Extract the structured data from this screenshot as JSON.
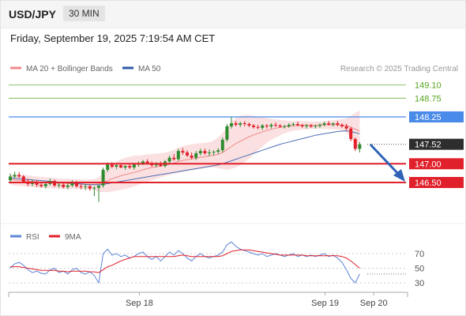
{
  "header": {
    "pair": "USD/JPY",
    "timeframe": "30 MIN"
  },
  "datetime": "Friday, September 19, 2025 7:19:54 AM CET",
  "credit": "Research © 2025 Trading Central",
  "colors": {
    "candle_up": "#2e8b2e",
    "candle_down": "#e0202a",
    "bollinger": "#f7c6c8",
    "ma20": "#f08a8a",
    "ma50": "#4a6fb5",
    "resistance": "#4a8ae8",
    "support": "#e0202a",
    "level_green": "#55a51c",
    "current": "#2d2d2d",
    "rsi": "#5c86d6",
    "ma9": "#e0202a",
    "arrow": "#2f63b6"
  },
  "chart_data": [
    {
      "type": "candlestick",
      "title": "USD/JPY",
      "legend": [
        {
          "name": "MA 20 + Bollinger Bands",
          "color": "#f08a8a"
        },
        {
          "name": "MA 50",
          "color": "#2d5aa8"
        }
      ],
      "legend_position": "top-left",
      "ylim": [
        145.9,
        149.4
      ],
      "levels": [
        {
          "value": 149.1,
          "label": "149.10",
          "kind": "resistance",
          "color": "#55a51c"
        },
        {
          "value": 148.75,
          "label": "148.75",
          "kind": "resistance",
          "color": "#55a51c"
        },
        {
          "value": 148.25,
          "label": "148.25",
          "kind": "resistance",
          "color": "#4a8ae8"
        },
        {
          "value": 147.52,
          "label": "147.52",
          "kind": "current",
          "color": "#2d2d2d"
        },
        {
          "value": 147.0,
          "label": "147.00",
          "kind": "support",
          "color": "#e0202a"
        },
        {
          "value": 146.5,
          "label": "146.50",
          "kind": "support",
          "color": "#e0202a"
        }
      ],
      "x_ticks": [
        {
          "index": 29,
          "label": "Sep 18"
        },
        {
          "index": 71,
          "label": "Sep 19"
        },
        {
          "index": 82,
          "label": "Sep 20"
        }
      ],
      "candles": [
        [
          146.56,
          146.74,
          146.52,
          146.66
        ],
        [
          146.66,
          146.79,
          146.6,
          146.7
        ],
        [
          146.7,
          146.78,
          146.62,
          146.66
        ],
        [
          146.66,
          146.7,
          146.48,
          146.52
        ],
        [
          146.52,
          146.6,
          146.4,
          146.46
        ],
        [
          146.46,
          146.58,
          146.4,
          146.5
        ],
        [
          146.5,
          146.56,
          146.38,
          146.44
        ],
        [
          146.44,
          146.52,
          146.36,
          146.4
        ],
        [
          146.4,
          146.5,
          146.34,
          146.46
        ],
        [
          146.46,
          146.6,
          146.42,
          146.54
        ],
        [
          146.54,
          146.58,
          146.38,
          146.42
        ],
        [
          146.42,
          146.5,
          146.36,
          146.44
        ],
        [
          146.44,
          146.52,
          146.34,
          146.38
        ],
        [
          146.38,
          146.48,
          146.32,
          146.42
        ],
        [
          146.42,
          146.56,
          146.38,
          146.5
        ],
        [
          146.5,
          146.54,
          146.36,
          146.4
        ],
        [
          146.4,
          146.46,
          146.32,
          146.38
        ],
        [
          146.38,
          146.46,
          146.3,
          146.4
        ],
        [
          146.4,
          146.44,
          146.28,
          146.34
        ],
        [
          146.34,
          146.4,
          146.14,
          146.36
        ],
        [
          146.36,
          146.4,
          145.98,
          146.42
        ],
        [
          146.42,
          146.9,
          146.36,
          146.84
        ],
        [
          146.84,
          147.04,
          146.78,
          146.98
        ],
        [
          146.98,
          147.04,
          146.88,
          146.92
        ],
        [
          146.92,
          147.0,
          146.86,
          146.96
        ],
        [
          146.96,
          147.0,
          146.88,
          146.9
        ],
        [
          146.9,
          146.96,
          146.84,
          146.94
        ],
        [
          146.94,
          146.98,
          146.86,
          146.9
        ],
        [
          146.9,
          147.02,
          146.84,
          146.98
        ],
        [
          146.98,
          147.06,
          146.92,
          147.0
        ],
        [
          147.0,
          147.1,
          146.96,
          147.06
        ],
        [
          147.06,
          147.12,
          146.98,
          147.02
        ],
        [
          147.02,
          147.06,
          146.92,
          146.96
        ],
        [
          146.96,
          147.04,
          146.9,
          147.0
        ],
        [
          147.0,
          147.06,
          146.92,
          146.94
        ],
        [
          146.94,
          147.1,
          146.9,
          147.06
        ],
        [
          147.06,
          147.22,
          147.0,
          147.16
        ],
        [
          147.16,
          147.26,
          147.08,
          147.12
        ],
        [
          147.12,
          147.4,
          147.08,
          147.34
        ],
        [
          147.34,
          147.42,
          147.24,
          147.3
        ],
        [
          147.3,
          147.36,
          147.18,
          147.22
        ],
        [
          147.22,
          147.3,
          147.12,
          147.16
        ],
        [
          147.16,
          147.34,
          147.1,
          147.28
        ],
        [
          147.28,
          147.4,
          147.22,
          147.34
        ],
        [
          147.34,
          147.4,
          147.24,
          147.28
        ],
        [
          147.28,
          147.38,
          147.2,
          147.3
        ],
        [
          147.3,
          147.36,
          147.22,
          147.32
        ],
        [
          147.32,
          147.42,
          147.26,
          147.36
        ],
        [
          147.36,
          147.7,
          147.3,
          147.64
        ],
        [
          147.64,
          148.06,
          147.58,
          148.0
        ],
        [
          148.0,
          148.26,
          147.94,
          148.08
        ],
        [
          148.08,
          148.14,
          148.0,
          148.04
        ],
        [
          148.04,
          148.12,
          147.98,
          148.08
        ],
        [
          148.08,
          148.14,
          148.0,
          148.06
        ],
        [
          148.06,
          148.1,
          147.98,
          148.02
        ],
        [
          148.02,
          148.06,
          147.94,
          147.98
        ],
        [
          147.98,
          148.04,
          147.92,
          147.96
        ],
        [
          147.96,
          148.06,
          147.9,
          148.02
        ],
        [
          148.02,
          148.06,
          147.94,
          148.0
        ],
        [
          148.0,
          148.08,
          147.94,
          148.04
        ],
        [
          148.04,
          148.1,
          147.98,
          148.02
        ],
        [
          148.02,
          148.06,
          147.96,
          147.99
        ],
        [
          147.99,
          148.04,
          147.94,
          148.0
        ],
        [
          148.0,
          148.08,
          147.96,
          148.04
        ],
        [
          148.04,
          148.1,
          148.0,
          148.06
        ],
        [
          148.06,
          148.12,
          148.0,
          148.03
        ],
        [
          148.03,
          148.06,
          147.96,
          148.0
        ],
        [
          148.0,
          148.06,
          147.94,
          148.02
        ],
        [
          148.02,
          148.06,
          147.96,
          147.99
        ],
        [
          147.99,
          148.04,
          147.94,
          148.01
        ],
        [
          148.01,
          148.08,
          147.96,
          148.04
        ],
        [
          148.04,
          148.12,
          148.0,
          148.08
        ],
        [
          148.08,
          148.14,
          148.02,
          148.05
        ],
        [
          148.05,
          148.1,
          148.0,
          148.08
        ],
        [
          148.08,
          148.14,
          148.0,
          148.04
        ],
        [
          148.04,
          148.08,
          147.96,
          148.0
        ],
        [
          148.0,
          148.06,
          147.9,
          147.94
        ],
        [
          147.94,
          147.98,
          147.6,
          147.66
        ],
        [
          147.66,
          147.7,
          147.34,
          147.4
        ],
        [
          147.4,
          147.58,
          147.3,
          147.52
        ]
      ],
      "ma20": [
        146.58,
        146.57,
        146.56,
        146.55,
        146.54,
        146.53,
        146.52,
        146.51,
        146.5,
        146.5,
        146.49,
        146.48,
        146.48,
        146.47,
        146.47,
        146.46,
        146.46,
        146.45,
        146.45,
        146.45,
        146.46,
        146.5,
        146.55,
        146.6,
        146.64,
        146.68,
        146.71,
        146.74,
        146.77,
        146.8,
        146.84,
        146.87,
        146.9,
        146.92,
        146.94,
        146.96,
        146.99,
        147.02,
        147.06,
        147.09,
        147.11,
        147.13,
        147.15,
        147.17,
        147.19,
        147.21,
        147.23,
        147.25,
        147.3,
        147.38,
        147.46,
        147.54,
        147.6,
        147.66,
        147.72,
        147.77,
        147.81,
        147.85,
        147.89,
        147.92,
        147.95,
        147.97,
        147.99,
        148.0,
        148.01,
        148.02,
        148.03,
        148.03,
        148.03,
        148.03,
        148.03,
        148.04,
        148.04,
        148.04,
        148.04,
        148.03,
        148.02,
        147.98,
        147.92,
        147.87
      ],
      "bb_upper": [
        146.72,
        146.72,
        146.71,
        146.7,
        146.69,
        146.68,
        146.66,
        146.65,
        146.64,
        146.63,
        146.62,
        146.61,
        146.6,
        146.6,
        146.59,
        146.59,
        146.58,
        146.58,
        146.58,
        146.59,
        146.64,
        146.76,
        146.88,
        146.98,
        147.06,
        147.12,
        147.16,
        147.19,
        147.21,
        147.22,
        147.23,
        147.25,
        147.26,
        147.27,
        147.28,
        147.3,
        147.33,
        147.37,
        147.43,
        147.47,
        147.5,
        147.52,
        147.54,
        147.55,
        147.56,
        147.58,
        147.62,
        147.7,
        147.82,
        147.98,
        148.12,
        148.22,
        148.28,
        148.3,
        148.3,
        148.28,
        148.26,
        148.24,
        148.22,
        148.2,
        148.18,
        148.17,
        148.16,
        148.15,
        148.14,
        148.14,
        148.14,
        148.14,
        148.13,
        148.13,
        148.13,
        148.14,
        148.15,
        148.16,
        148.17,
        148.19,
        148.21,
        148.28,
        148.36,
        148.42
      ],
      "bb_lower": [
        146.44,
        146.42,
        146.41,
        146.4,
        146.39,
        146.38,
        146.37,
        146.36,
        146.35,
        146.35,
        146.34,
        146.34,
        146.33,
        146.33,
        146.33,
        146.32,
        146.32,
        146.32,
        146.31,
        146.29,
        146.26,
        146.24,
        146.24,
        146.26,
        146.28,
        146.3,
        146.33,
        146.36,
        146.4,
        146.44,
        146.48,
        146.52,
        146.56,
        146.6,
        146.64,
        146.67,
        146.7,
        146.73,
        146.76,
        146.78,
        146.8,
        146.82,
        146.84,
        146.86,
        146.88,
        146.9,
        146.9,
        146.88,
        146.86,
        146.84,
        146.86,
        146.9,
        146.96,
        147.04,
        147.14,
        147.24,
        147.36,
        147.46,
        147.56,
        147.64,
        147.7,
        147.76,
        147.81,
        147.85,
        147.88,
        147.9,
        147.91,
        147.92,
        147.93,
        147.93,
        147.93,
        147.93,
        147.93,
        147.92,
        147.91,
        147.88,
        147.83,
        147.68,
        147.48,
        147.32
      ],
      "ma50": [
        146.62,
        146.61,
        146.6,
        146.59,
        146.58,
        146.57,
        146.56,
        146.55,
        146.54,
        146.53,
        146.52,
        146.51,
        146.5,
        146.49,
        146.48,
        146.47,
        146.46,
        146.45,
        146.44,
        146.44,
        146.44,
        146.45,
        146.47,
        146.49,
        146.51,
        146.53,
        146.55,
        146.57,
        146.59,
        146.61,
        146.63,
        146.65,
        146.67,
        146.69,
        146.71,
        146.73,
        146.75,
        146.77,
        146.79,
        146.81,
        146.83,
        146.85,
        146.87,
        146.89,
        146.91,
        146.93,
        146.95,
        146.97,
        147.0,
        147.04,
        147.08,
        147.12,
        147.16,
        147.2,
        147.24,
        147.28,
        147.32,
        147.36,
        147.4,
        147.44,
        147.48,
        147.52,
        147.55,
        147.58,
        147.61,
        147.64,
        147.67,
        147.7,
        147.73,
        147.76,
        147.78,
        147.8,
        147.82,
        147.84,
        147.86,
        147.87,
        147.88,
        147.86,
        147.83,
        147.8
      ]
    },
    {
      "type": "line",
      "legend": [
        {
          "name": "RSI",
          "color": "#5c86d6"
        },
        {
          "name": "9MA",
          "color": "#e0202a"
        }
      ],
      "ylim": [
        20,
        80
      ],
      "yticks": [
        30,
        50,
        70
      ],
      "series": [
        {
          "name": "RSI",
          "values": [
            50,
            56,
            58,
            54,
            48,
            44,
            46,
            43,
            42,
            48,
            50,
            44,
            46,
            42,
            48,
            50,
            44,
            42,
            45,
            40,
            30,
            70,
            76,
            68,
            70,
            66,
            68,
            64,
            66,
            70,
            72,
            66,
            62,
            66,
            60,
            66,
            72,
            68,
            74,
            70,
            64,
            60,
            66,
            70,
            66,
            64,
            66,
            68,
            72,
            82,
            86,
            80,
            76,
            74,
            72,
            70,
            68,
            70,
            66,
            68,
            70,
            68,
            66,
            68,
            70,
            66,
            68,
            66,
            68,
            66,
            68,
            70,
            66,
            68,
            64,
            58,
            48,
            36,
            30,
            42
          ]
        },
        {
          "name": "9MA",
          "values": [
            52,
            52,
            52,
            51,
            50,
            49,
            48,
            47,
            47,
            47,
            47,
            46,
            46,
            45,
            46,
            46,
            46,
            46,
            45,
            45,
            44,
            48,
            52,
            54,
            57,
            60,
            62,
            64,
            66,
            66,
            66,
            66,
            66,
            66,
            66,
            66,
            66,
            66,
            67,
            68,
            67,
            66,
            66,
            66,
            66,
            66,
            66,
            66,
            67,
            70,
            73,
            74,
            75,
            75,
            75,
            74,
            73,
            72,
            71,
            70,
            69,
            68,
            68,
            68,
            68,
            68,
            68,
            67,
            67,
            67,
            67,
            67,
            67,
            67,
            67,
            66,
            64,
            60,
            55,
            50
          ]
        }
      ]
    }
  ]
}
